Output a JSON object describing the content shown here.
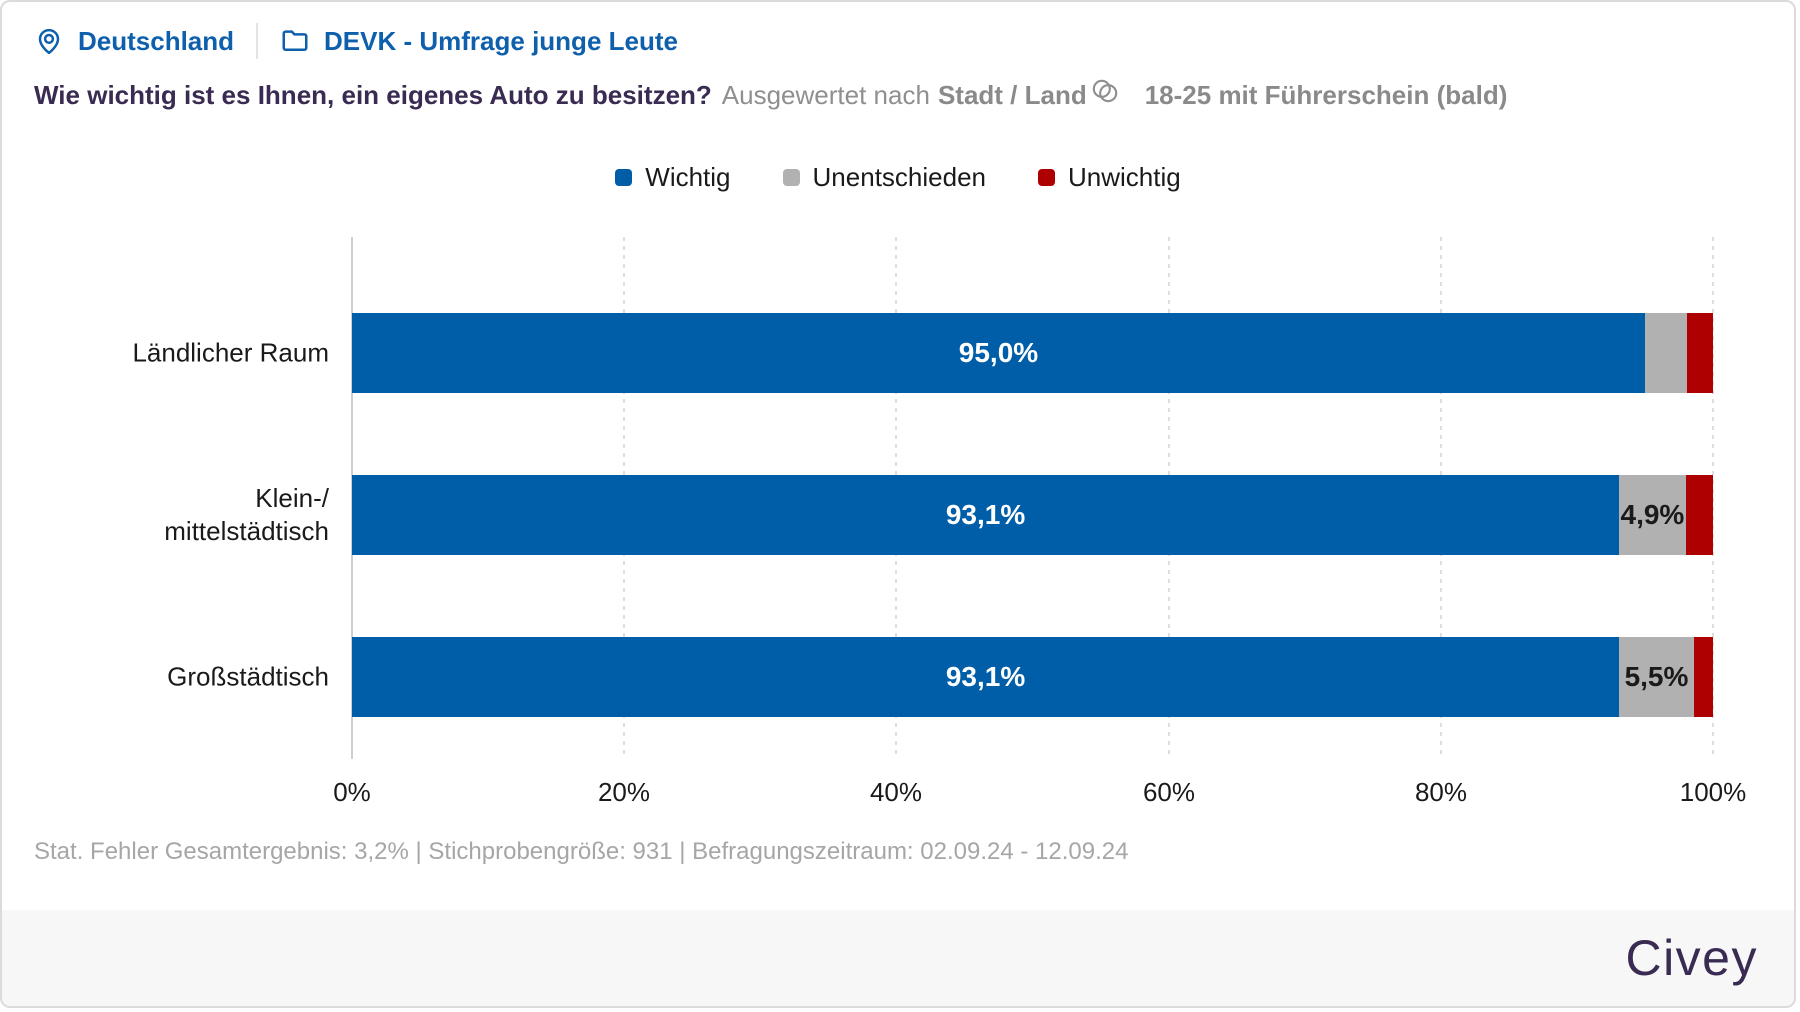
{
  "header": {
    "location": "Deutschland",
    "survey": "DEVK - Umfrage junge Leute"
  },
  "title": {
    "question": "Wie wichtig ist es Ihnen, ein eigenes Auto zu besitzen?",
    "evaluated_by_label": "Ausgewertet nach",
    "evaluated_by": "Stadt / Land",
    "filter": "18-25 mit Führerschein (bald)"
  },
  "legend": [
    {
      "label": "Wichtig",
      "color": "#005ea8"
    },
    {
      "label": "Unentschieden",
      "color": "#b1b1b1"
    },
    {
      "label": "Unwichtig",
      "color": "#ae0000"
    }
  ],
  "chart_data": {
    "type": "bar",
    "orientation": "horizontal",
    "stacked": true,
    "title": "Wie wichtig ist es Ihnen, ein eigenes Auto zu besitzen?",
    "categories": [
      "Ländlicher Raum",
      "Klein-/\nmittelstädtisch",
      "Großstädtisch"
    ],
    "series": [
      {
        "name": "Wichtig",
        "color": "#005ea8",
        "values": [
          95.0,
          93.1,
          93.1
        ],
        "value_labels": [
          "95,0%",
          "93,1%",
          "93,1%"
        ]
      },
      {
        "name": "Unentschieden",
        "color": "#b1b1b1",
        "values": [
          3.1,
          4.9,
          5.5
        ],
        "value_labels": [
          "",
          "4,9%",
          "5,5%"
        ]
      },
      {
        "name": "Unwichtig",
        "color": "#ae0000",
        "values": [
          1.9,
          2.0,
          1.4
        ],
        "value_labels": [
          "",
          "",
          ""
        ]
      }
    ],
    "xlabel": "",
    "ylabel": "",
    "xlim": [
      0,
      100
    ],
    "x_ticks": [
      "0%",
      "20%",
      "40%",
      "60%",
      "80%",
      "100%"
    ],
    "grid": "vertical-dotted",
    "legend_position": "top-center"
  },
  "footnote": "Stat. Fehler Gesamtergebnis: 3,2% | Stichprobengröße: 931 | Befragungszeitraum: 02.09.24 - 12.09.24",
  "brand": {
    "logo_text": "Civey"
  },
  "colors": {
    "link_blue": "#0e5fac",
    "title_purple": "#3a2b52",
    "muted_gray": "#8f8f8f",
    "footnote_gray": "#a6a6a6"
  }
}
